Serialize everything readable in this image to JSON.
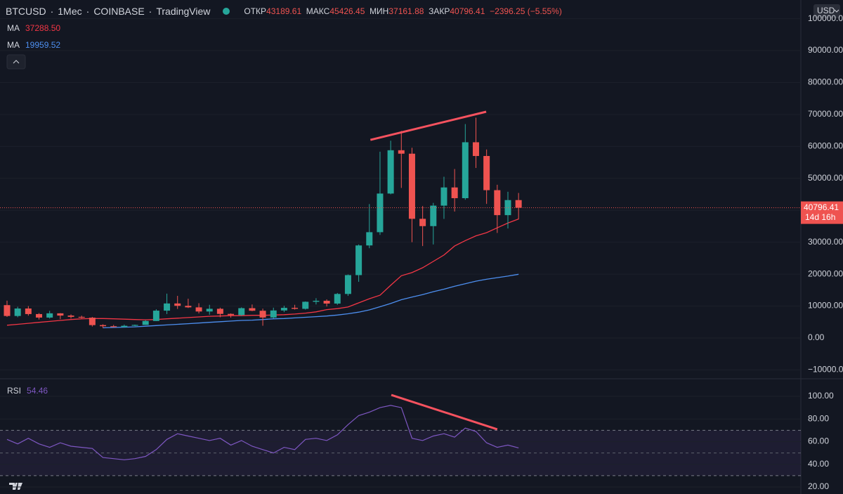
{
  "chart_data": [
    {
      "type": "candlestick",
      "symbol": "BTCUSD",
      "interval": "1Мес",
      "exchange": "COINBASE",
      "source": "TradingView",
      "ohlc_labels": {
        "open": "ОТКР",
        "high": "МАКС",
        "low": "МИН",
        "close": "ЗАКР"
      },
      "change_label": "−2396.25 (−5.55%)",
      "countdown": "14d 16h",
      "currency": "USD",
      "up_color": "#26a69a",
      "down_color": "#ef5350",
      "candles": {
        "open": [
          10300,
          6900,
          9240,
          7500,
          6400,
          7730,
          7030,
          6630,
          6370,
          4040,
          3700,
          3440,
          3830,
          4100,
          5330,
          8570,
          10820,
          10080,
          9600,
          8300,
          9150,
          7550,
          7190,
          9350,
          8540,
          6420,
          8630,
          9450,
          9140,
          11350,
          11660,
          10780,
          13800,
          19700,
          28990,
          33140,
          45240,
          58800,
          57720,
          37330,
          35040,
          41460,
          47150,
          43790,
          61300,
          57000,
          46300,
          38480,
          43189.61
        ],
        "high": [
          11700,
          9800,
          10000,
          7800,
          8500,
          7800,
          7400,
          7000,
          6600,
          4300,
          4100,
          4200,
          4200,
          5600,
          9000,
          13900,
          13200,
          12300,
          10900,
          10400,
          9500,
          7700,
          9600,
          10500,
          9200,
          9500,
          10100,
          10400,
          11450,
          12470,
          12100,
          14100,
          19900,
          29300,
          41950,
          58350,
          61790,
          64850,
          59580,
          41330,
          42320,
          50500,
          52920,
          67000,
          69000,
          59040,
          47990,
          45800,
          45426.45
        ],
        "low": [
          6600,
          6500,
          7000,
          5800,
          6100,
          5900,
          6100,
          6200,
          3600,
          3150,
          3350,
          3400,
          3700,
          4100,
          5330,
          7500,
          9100,
          9400,
          7700,
          7300,
          6500,
          6400,
          6900,
          8400,
          3850,
          6150,
          8100,
          8900,
          8900,
          10500,
          9880,
          10400,
          13200,
          17600,
          28130,
          32300,
          45000,
          47000,
          30000,
          28800,
          29300,
          37300,
          39600,
          43300,
          53250,
          42000,
          32900,
          34300,
          37161.88
        ],
        "close": [
          6900,
          9240,
          7500,
          6400,
          7730,
          7030,
          6630,
          6370,
          4040,
          3700,
          3440,
          3830,
          4100,
          5330,
          8570,
          10820,
          10080,
          9600,
          8300,
          9150,
          7550,
          7190,
          9350,
          8540,
          6420,
          8630,
          9450,
          9140,
          11350,
          11660,
          10780,
          13800,
          19700,
          28990,
          33140,
          45240,
          58800,
          57720,
          37330,
          35040,
          41460,
          47150,
          43790,
          61300,
          57000,
          46300,
          38480,
          43190,
          40796.41
        ]
      },
      "series": [
        {
          "name": "MA",
          "color": "#f23645",
          "legend_value": "37288.50",
          "values": [
            4000,
            4300,
            4600,
            4900,
            5200,
            5500,
            5800,
            6000,
            6100,
            6100,
            6000,
            5900,
            5800,
            5700,
            5800,
            6000,
            6200,
            6400,
            6600,
            6800,
            6900,
            7000,
            7000,
            7100,
            7100,
            7200,
            7300,
            7500,
            7800,
            8200,
            8900,
            9200,
            9700,
            11000,
            12300,
            13400,
            16500,
            19500,
            20500,
            22000,
            24000,
            26000,
            28800,
            30500,
            32000,
            33000,
            34500,
            36000,
            37288.5
          ]
        },
        {
          "name": "MA",
          "color": "#4d8ff0",
          "legend_value": "19959.52",
          "values": [
            null,
            null,
            null,
            null,
            null,
            null,
            null,
            null,
            null,
            3200,
            3300,
            3400,
            3500,
            3700,
            3900,
            4100,
            4300,
            4500,
            4700,
            4900,
            5100,
            5300,
            5500,
            5600,
            5800,
            6000,
            6100,
            6300,
            6500,
            6700,
            6900,
            7200,
            7600,
            8100,
            8800,
            9800,
            10800,
            12000,
            12800,
            13600,
            14500,
            15300,
            16200,
            17000,
            17800,
            18400,
            18900,
            19400,
            19959.52
          ]
        }
      ],
      "trendline": {
        "color": "#f7525f",
        "x": [
          34.1,
          44.96
        ],
        "y": [
          62050,
          70860
        ]
      },
      "ylim": [
        -12540,
        105850
      ],
      "yticks": [
        {
          "value": -10000,
          "label": "−10000.00"
        },
        {
          "value": 0,
          "label": "0.00"
        },
        {
          "value": 10000,
          "label": "10000.00"
        },
        {
          "value": 20000,
          "label": "20000.00"
        },
        {
          "value": 30000,
          "label": "30000.00"
        },
        {
          "value": 40000,
          "label": "40000.00"
        },
        {
          "value": 50000,
          "label": "50000.00"
        },
        {
          "value": 60000,
          "label": "60000.00"
        },
        {
          "value": 70000,
          "label": "70000.00"
        },
        {
          "value": 80000,
          "label": "80000.00"
        },
        {
          "value": 90000,
          "label": "90000.00"
        },
        {
          "value": 100000,
          "label": "100000.00"
        }
      ]
    },
    {
      "type": "line",
      "series": [
        {
          "name": "RSI",
          "color": "#7e57c2",
          "values": [
            62,
            58,
            63,
            58,
            55,
            59,
            56,
            55,
            54,
            46,
            45,
            44,
            45,
            47,
            53,
            62,
            67,
            65,
            63,
            61,
            63,
            57,
            61,
            56,
            53,
            50,
            55,
            53,
            62,
            63,
            61,
            66,
            75,
            83,
            86,
            90,
            92,
            90,
            63,
            61,
            65,
            67,
            64,
            72,
            69,
            59,
            55,
            57,
            54.46
          ]
        }
      ],
      "bands": [
        30,
        70
      ],
      "midline": 50,
      "trendline": {
        "color": "#f7525f",
        "x": [
          36.06,
          46.0
        ],
        "y": [
          101.2,
          70.9
        ]
      },
      "ylim": [
        13.8,
        114.9
      ],
      "yticks": [
        {
          "value": 20,
          "label": "20.00"
        },
        {
          "value": 40,
          "label": "40.00"
        },
        {
          "value": 60,
          "label": "60.00"
        },
        {
          "value": 80,
          "label": "80.00"
        },
        {
          "value": 100,
          "label": "100.00"
        }
      ]
    }
  ]
}
